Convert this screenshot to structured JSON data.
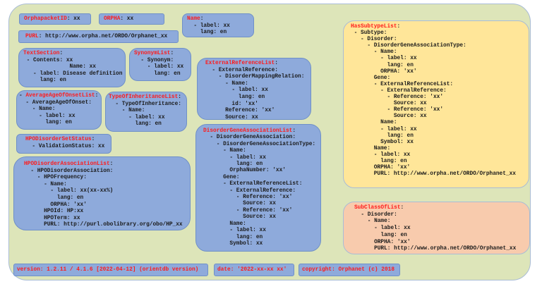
{
  "colors": {
    "background": "#dde5b9",
    "box_blue": "#8eaadb",
    "box_yellow": "#ffe699",
    "box_salmon": "#f8cbad",
    "key_red": "#ff1a1a"
  },
  "orphapacketid": {
    "key": "OrphapacketID",
    "value": ": xx"
  },
  "orpha": {
    "key": "ORPHA",
    "value": ": xx"
  },
  "name": {
    "key": "Name",
    "colon": ":",
    "lines": "  - label: xx\n    lang: en"
  },
  "purl": {
    "key": "PURL",
    "value": ": http://www.orpha.net/ORDO/Orphanet_xx"
  },
  "text_section": {
    "key": "TextSection",
    "colon": ":",
    "lines": " - Contents: xx\n              Name: xx\n   - label: Disease definition\n     lang: en"
  },
  "synonym_list": {
    "key": "SynonymList",
    "colon": ":",
    "lines": "  - Synonym:\n    - label: xx\n      lang: en"
  },
  "external_reference_list": {
    "key": "ExternalReferenceList",
    "colon": ":",
    "lines": "  - ExternalReference:\n    - DisorderMappingRelation:\n      - Name:\n        - label: xx\n          lang: en\n        id: 'xx'\n      Reference: 'xx'\n      Source: xx"
  },
  "average_age_of_onset_list": {
    "prefix": "- ",
    "key": "AverageAgeOfOnsetList",
    "colon": ":",
    "lines": "  - AverageAgeOfOnset:\n    - Name:\n      - label: xx\n        lang: en"
  },
  "type_of_inheritance_list": {
    "key": "TypeOfInheritanceList",
    "colon": ":",
    "lines": "  - TypeOfInheritance:\n    - Name:\n      - label: xx\n        lang: en"
  },
  "hpo_disorder_set_status": {
    "key": "HPODisorderSetStatus",
    "colon": ":",
    "lines": "  - ValidationStatus: xx"
  },
  "hpo_disorder_association_list": {
    "key": "HPODisorderAssociationList",
    "colon": ":",
    "lines": "  - HPODisorderAssociation:\n    - HPOFrequency:\n      - Name:\n        - label: xx(xx-xx%)\n          lang: en\n        ORPHA: 'xx'\n      HPOId: HP:xx\n      HPOTerm: xx\n      PURL: http://purl.obolibrary.org/obo/HP_xx"
  },
  "disorder_gene_association_list": {
    "key": "DisorderGeneAssociationList",
    "colon": ":",
    "lines": "  - DisorderGeneAssociation:\n    - DisorderGeneAssociationType:\n      - Name:\n        - label: xx\n          lang: en\n        OrphaNumber: 'xx'\n      Gene:\n      - ExternalReferenceList:\n        - ExternalReference:\n          - Reference: 'xx'\n            Source: xx\n          - Reference: 'xx'\n            Source: xx\n        Name:\n        - label: xx\n          lang: en\n        Symbol: xx"
  },
  "has_subtype_list": {
    "key": "HasSubtypeList",
    "colon": ":",
    "lines": " - Subtype:\n   - Disorder:\n     - DisorderGeneAssociationType:\n       - Name:\n         - label: xx\n           lang: en\n         ORPHA: 'xx'\n       Gene:\n       - ExternalReferenceList:\n         - ExternalReference:\n           - Reference: 'xx'\n             Source: xx\n           - Reference: 'xx'\n             Source: xx\n         Name:\n         - label: xx\n           lang: en\n         Symbol: xx\n       Name:\n       - label: xx\n         lang: en\n       ORPHA: 'xx'\n       PURL: http://www.orpha.net/ORDO/Orphanet_xx"
  },
  "subclass_of_list": {
    "key": "SubClassOfList",
    "colon": ":",
    "lines": "  - Disorder:\n    - Name:\n      - label: xx\n        lang: en\n      ORPHA: 'xx'\n      PURL: http://www.orpha.net/ORDO/Orphanet_xx"
  },
  "footer": {
    "version": "version: 1.2.11 / 4.1.6 [2022-04-12] (orientdb version)",
    "date": "date: '2022-xx-xx xx'",
    "copyright": "copyright: Orphanet (c) 2018"
  }
}
